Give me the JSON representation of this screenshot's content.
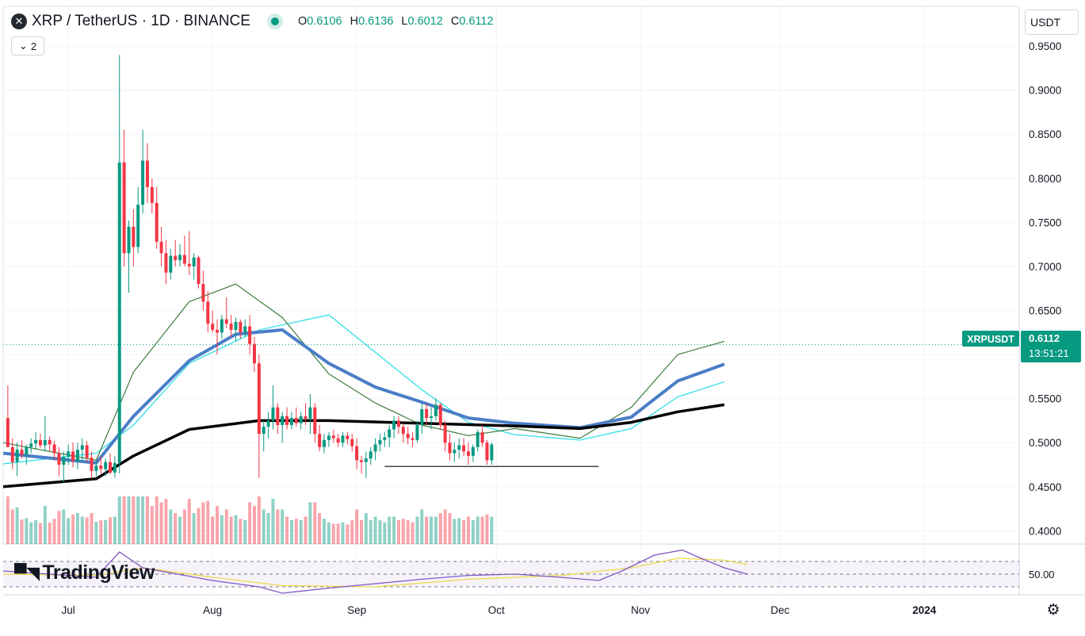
{
  "header": {
    "symbol": "XRP / TetherUS · 1D · BINANCE",
    "icon": "xrp-logo-icon",
    "ohlc": [
      {
        "key": "O",
        "value": "0.6106"
      },
      {
        "key": "H",
        "value": "0.6136"
      },
      {
        "key": "L",
        "value": "0.6012"
      },
      {
        "key": "C",
        "value": "0.6112"
      }
    ],
    "indicator_count": "2",
    "currency": "USDT"
  },
  "price_tag": {
    "symbol": "XRPUSDT",
    "price": "0.6112",
    "countdown": "13:51:21"
  },
  "rsi_level_label": "50.00",
  "branding": "TradingView",
  "colors": {
    "up": "#089981",
    "down": "#f23645",
    "ma_fast": "#3d7a3d",
    "ma_mid": "#4a7ec7",
    "ma_slow": "#000000",
    "ma_cyan": "#3fe0e8",
    "rsi": "#7e57c2",
    "rsi_ma": "#f0d84a"
  },
  "chart_data": {
    "type": "candlestick",
    "y_ticks": [
      "0.9500",
      "0.9000",
      "0.8500",
      "0.8000",
      "0.7500",
      "0.7000",
      "0.6500",
      "0.6000",
      "0.5500",
      "0.5000",
      "0.4500",
      "0.4000"
    ],
    "ylim": [
      0.385,
      0.96
    ],
    "x_ticks": [
      {
        "label": "Jul",
        "day": 14
      },
      {
        "label": "Aug",
        "day": 45
      },
      {
        "label": "Sep",
        "day": 76
      },
      {
        "label": "Oct",
        "day": 106
      },
      {
        "label": "Nov",
        "day": 137
      },
      {
        "label": "Dec",
        "day": 167
      },
      {
        "label": "2024",
        "day": 198
      }
    ],
    "support_line": {
      "from_day": 82,
      "to_day": 128,
      "price": 0.473
    },
    "ma_slow": [
      [
        0,
        0.45
      ],
      [
        20,
        0.459
      ],
      [
        28,
        0.485
      ],
      [
        40,
        0.515
      ],
      [
        55,
        0.525
      ],
      [
        70,
        0.525
      ],
      [
        90,
        0.522
      ],
      [
        110,
        0.519
      ],
      [
        124,
        0.516
      ],
      [
        135,
        0.523
      ],
      [
        145,
        0.535
      ],
      [
        155,
        0.543
      ]
    ],
    "ma_mid": [
      [
        0,
        0.488
      ],
      [
        20,
        0.477
      ],
      [
        28,
        0.53
      ],
      [
        40,
        0.593
      ],
      [
        50,
        0.623
      ],
      [
        60,
        0.628
      ],
      [
        70,
        0.59
      ],
      [
        80,
        0.563
      ],
      [
        90,
        0.546
      ],
      [
        100,
        0.528
      ],
      [
        110,
        0.522
      ],
      [
        124,
        0.517
      ],
      [
        135,
        0.529
      ],
      [
        145,
        0.57
      ],
      [
        155,
        0.589
      ]
    ],
    "ma_fast": [
      [
        0,
        0.5
      ],
      [
        20,
        0.48
      ],
      [
        28,
        0.58
      ],
      [
        40,
        0.66
      ],
      [
        50,
        0.68
      ],
      [
        60,
        0.642
      ],
      [
        70,
        0.578
      ],
      [
        80,
        0.545
      ],
      [
        90,
        0.52
      ],
      [
        100,
        0.508
      ],
      [
        110,
        0.516
      ],
      [
        124,
        0.505
      ],
      [
        135,
        0.54
      ],
      [
        145,
        0.6
      ],
      [
        155,
        0.615
      ]
    ],
    "ma_cyan": [
      [
        0,
        0.476
      ],
      [
        20,
        0.488
      ],
      [
        28,
        0.52
      ],
      [
        40,
        0.59
      ],
      [
        55,
        0.628
      ],
      [
        70,
        0.645
      ],
      [
        90,
        0.56
      ],
      [
        100,
        0.523
      ],
      [
        110,
        0.509
      ],
      [
        124,
        0.503
      ],
      [
        135,
        0.516
      ],
      [
        145,
        0.552
      ],
      [
        155,
        0.569
      ]
    ],
    "candles": [
      [
        1,
        0.528,
        0.565,
        0.495,
        0.495
      ],
      [
        2,
        0.495,
        0.505,
        0.47,
        0.478
      ],
      [
        3,
        0.478,
        0.5,
        0.462,
        0.492
      ],
      [
        4,
        0.492,
        0.503,
        0.482,
        0.486
      ],
      [
        5,
        0.486,
        0.498,
        0.475,
        0.495
      ],
      [
        6,
        0.495,
        0.505,
        0.488,
        0.499
      ],
      [
        7,
        0.499,
        0.512,
        0.492,
        0.503
      ],
      [
        8,
        0.503,
        0.51,
        0.494,
        0.497
      ],
      [
        9,
        0.497,
        0.53,
        0.49,
        0.503
      ],
      [
        10,
        0.503,
        0.507,
        0.49,
        0.498
      ],
      [
        11,
        0.498,
        0.502,
        0.48,
        0.488
      ],
      [
        12,
        0.488,
        0.495,
        0.462,
        0.475
      ],
      [
        13,
        0.475,
        0.49,
        0.455,
        0.484
      ],
      [
        14,
        0.484,
        0.498,
        0.475,
        0.49
      ],
      [
        15,
        0.49,
        0.5,
        0.472,
        0.479
      ],
      [
        16,
        0.479,
        0.5,
        0.47,
        0.492
      ],
      [
        17,
        0.492,
        0.505,
        0.48,
        0.497
      ],
      [
        18,
        0.497,
        0.502,
        0.478,
        0.483
      ],
      [
        19,
        0.483,
        0.49,
        0.46,
        0.468
      ],
      [
        20,
        0.468,
        0.48,
        0.462,
        0.474
      ],
      [
        21,
        0.474,
        0.485,
        0.465,
        0.47
      ],
      [
        22,
        0.47,
        0.482,
        0.462,
        0.478
      ],
      [
        23,
        0.478,
        0.488,
        0.464,
        0.466
      ],
      [
        24,
        0.466,
        0.485,
        0.46,
        0.477
      ],
      [
        25,
        0.477,
        0.94,
        0.465,
        0.818
      ],
      [
        26,
        0.818,
        0.855,
        0.7,
        0.715
      ],
      [
        27,
        0.715,
        0.752,
        0.67,
        0.745
      ],
      [
        28,
        0.745,
        0.765,
        0.7,
        0.722
      ],
      [
        29,
        0.722,
        0.79,
        0.715,
        0.77
      ],
      [
        30,
        0.77,
        0.855,
        0.76,
        0.82
      ],
      [
        31,
        0.82,
        0.84,
        0.772,
        0.79
      ],
      [
        32,
        0.79,
        0.8,
        0.76,
        0.772
      ],
      [
        33,
        0.772,
        0.79,
        0.72,
        0.728
      ],
      [
        34,
        0.728,
        0.745,
        0.7,
        0.715
      ],
      [
        35,
        0.715,
        0.73,
        0.68,
        0.693
      ],
      [
        36,
        0.693,
        0.72,
        0.685,
        0.712
      ],
      [
        37,
        0.712,
        0.73,
        0.7,
        0.707
      ],
      [
        38,
        0.707,
        0.725,
        0.7,
        0.713
      ],
      [
        39,
        0.713,
        0.735,
        0.7,
        0.703
      ],
      [
        40,
        0.703,
        0.74,
        0.69,
        0.7
      ],
      [
        41,
        0.7,
        0.715,
        0.685,
        0.71
      ],
      [
        42,
        0.71,
        0.712,
        0.675,
        0.68
      ],
      [
        43,
        0.68,
        0.695,
        0.65,
        0.66
      ],
      [
        44,
        0.66,
        0.672,
        0.625,
        0.635
      ],
      [
        45,
        0.635,
        0.65,
        0.625,
        0.628
      ],
      [
        46,
        0.628,
        0.64,
        0.6,
        0.625
      ],
      [
        47,
        0.625,
        0.645,
        0.618,
        0.64
      ],
      [
        48,
        0.64,
        0.665,
        0.63,
        0.635
      ],
      [
        49,
        0.635,
        0.645,
        0.62,
        0.628
      ],
      [
        50,
        0.628,
        0.642,
        0.615,
        0.637
      ],
      [
        51,
        0.637,
        0.64,
        0.618,
        0.625
      ],
      [
        52,
        0.625,
        0.64,
        0.62,
        0.632
      ],
      [
        53,
        0.632,
        0.645,
        0.6,
        0.612
      ],
      [
        54,
        0.612,
        0.62,
        0.58,
        0.59
      ],
      [
        55,
        0.59,
        0.6,
        0.46,
        0.51
      ],
      [
        56,
        0.51,
        0.525,
        0.49,
        0.518
      ],
      [
        57,
        0.518,
        0.535,
        0.505,
        0.525
      ],
      [
        58,
        0.525,
        0.565,
        0.515,
        0.54
      ],
      [
        59,
        0.54,
        0.545,
        0.51,
        0.52
      ],
      [
        60,
        0.52,
        0.535,
        0.5,
        0.53
      ],
      [
        61,
        0.53,
        0.54,
        0.515,
        0.52
      ],
      [
        62,
        0.52,
        0.535,
        0.515,
        0.528
      ],
      [
        63,
        0.528,
        0.54,
        0.518,
        0.522
      ],
      [
        64,
        0.522,
        0.535,
        0.515,
        0.53
      ],
      [
        65,
        0.53,
        0.545,
        0.52,
        0.527
      ],
      [
        66,
        0.527,
        0.555,
        0.51,
        0.54
      ],
      [
        67,
        0.54,
        0.545,
        0.5,
        0.51
      ],
      [
        68,
        0.51,
        0.52,
        0.49,
        0.495
      ],
      [
        69,
        0.495,
        0.51,
        0.488,
        0.503
      ],
      [
        70,
        0.503,
        0.512,
        0.495,
        0.508
      ],
      [
        71,
        0.508,
        0.515,
        0.5,
        0.505
      ],
      [
        72,
        0.505,
        0.51,
        0.495,
        0.5
      ],
      [
        73,
        0.5,
        0.512,
        0.495,
        0.508
      ],
      [
        74,
        0.508,
        0.512,
        0.498,
        0.504
      ],
      [
        75,
        0.504,
        0.51,
        0.49,
        0.496
      ],
      [
        76,
        0.496,
        0.505,
        0.47,
        0.48
      ],
      [
        77,
        0.48,
        0.485,
        0.465,
        0.478
      ],
      [
        78,
        0.478,
        0.49,
        0.46,
        0.482
      ],
      [
        79,
        0.482,
        0.495,
        0.475,
        0.49
      ],
      [
        80,
        0.49,
        0.505,
        0.48,
        0.498
      ],
      [
        81,
        0.498,
        0.51,
        0.49,
        0.503
      ],
      [
        82,
        0.503,
        0.512,
        0.495,
        0.506
      ],
      [
        83,
        0.506,
        0.52,
        0.495,
        0.515
      ],
      [
        84,
        0.515,
        0.53,
        0.505,
        0.525
      ],
      [
        85,
        0.525,
        0.53,
        0.51,
        0.518
      ],
      [
        86,
        0.518,
        0.522,
        0.5,
        0.51
      ],
      [
        87,
        0.51,
        0.518,
        0.498,
        0.505
      ],
      [
        88,
        0.505,
        0.512,
        0.495,
        0.503
      ],
      [
        89,
        0.503,
        0.525,
        0.5,
        0.52
      ],
      [
        90,
        0.52,
        0.545,
        0.51,
        0.538
      ],
      [
        91,
        0.538,
        0.545,
        0.52,
        0.528
      ],
      [
        92,
        0.528,
        0.54,
        0.515,
        0.53
      ],
      [
        93,
        0.53,
        0.55,
        0.525,
        0.543
      ],
      [
        94,
        0.543,
        0.545,
        0.515,
        0.52
      ],
      [
        95,
        0.52,
        0.525,
        0.49,
        0.5
      ],
      [
        96,
        0.5,
        0.51,
        0.48,
        0.488
      ],
      [
        97,
        0.488,
        0.5,
        0.478,
        0.492
      ],
      [
        98,
        0.492,
        0.505,
        0.482,
        0.497
      ],
      [
        99,
        0.497,
        0.505,
        0.485,
        0.49
      ],
      [
        100,
        0.49,
        0.5,
        0.475,
        0.485
      ],
      [
        101,
        0.485,
        0.498,
        0.478,
        0.495
      ],
      [
        102,
        0.495,
        0.515,
        0.49,
        0.512
      ],
      [
        103,
        0.512,
        0.52,
        0.495,
        0.5
      ],
      [
        104,
        0.5,
        0.503,
        0.475,
        0.48
      ],
      [
        105,
        0.48,
        0.5,
        0.475,
        0.498
      ]
    ],
    "rsi_levels": [
      70,
      50,
      30
    ],
    "rsi": [
      [
        0,
        55
      ],
      [
        20,
        45
      ],
      [
        25,
        85
      ],
      [
        30,
        60
      ],
      [
        45,
        40
      ],
      [
        55,
        30
      ],
      [
        60,
        20
      ],
      [
        70,
        28
      ],
      [
        80,
        35
      ],
      [
        90,
        42
      ],
      [
        100,
        48
      ],
      [
        110,
        50
      ],
      [
        120,
        45
      ],
      [
        128,
        40
      ],
      [
        133,
        55
      ],
      [
        140,
        80
      ],
      [
        146,
        88
      ],
      [
        150,
        75
      ],
      [
        155,
        60
      ],
      [
        160,
        50
      ]
    ],
    "rsi_ma": [
      [
        0,
        50
      ],
      [
        20,
        48
      ],
      [
        30,
        60
      ],
      [
        45,
        45
      ],
      [
        60,
        32
      ],
      [
        80,
        30
      ],
      [
        100,
        42
      ],
      [
        120,
        48
      ],
      [
        135,
        60
      ],
      [
        145,
        75
      ],
      [
        155,
        72
      ],
      [
        160,
        65
      ]
    ]
  }
}
